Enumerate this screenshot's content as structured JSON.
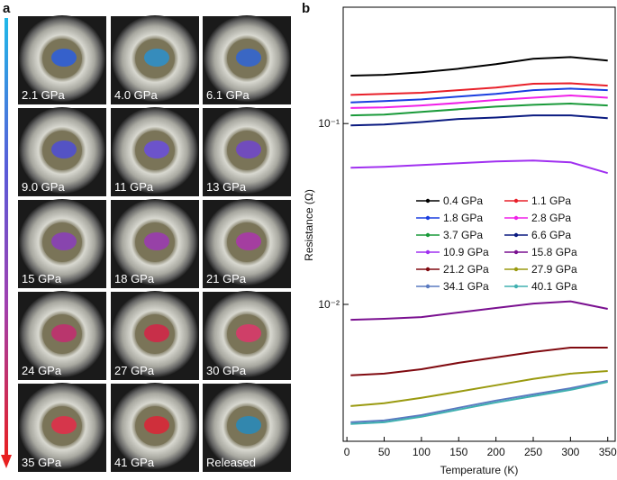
{
  "panel_labels": [
    "a",
    "b"
  ],
  "photos": [
    {
      "label": "2.1 GPa",
      "color": "#2f5fd8"
    },
    {
      "label": "4.0 GPa",
      "color": "#2f8fc8"
    },
    {
      "label": "6.1 GPa",
      "color": "#3366d0"
    },
    {
      "label": "9.0 GPa",
      "color": "#5050d0"
    },
    {
      "label": "11 GPa",
      "color": "#6a50d8"
    },
    {
      "label": "13 GPa",
      "color": "#7048c8"
    },
    {
      "label": "15 GPa",
      "color": "#8a40b8"
    },
    {
      "label": "18 GPa",
      "color": "#9a3cb0"
    },
    {
      "label": "21 GPa",
      "color": "#a838a8"
    },
    {
      "label": "24 GPa",
      "color": "#c03070"
    },
    {
      "label": "27 GPa",
      "color": "#d02848"
    },
    {
      "label": "30 GPa",
      "color": "#d83a6a"
    },
    {
      "label": "35 GPa",
      "color": "#e0304a"
    },
    {
      "label": "41 GPa",
      "color": "#d82838"
    },
    {
      "label": "Released",
      "color": "#2a8ab8"
    }
  ],
  "chart_data": {
    "type": "line",
    "xlabel": "Temperature (K)",
    "ylabel": "Resistance (Ω)",
    "log_y": true,
    "xlim": [
      -5,
      360
    ],
    "ylim": [
      0.00175,
      0.44
    ],
    "xticks": [
      0,
      50,
      100,
      150,
      200,
      250,
      300,
      350
    ],
    "yticks": [
      {
        "value": 0.1,
        "label": "10⁻¹"
      },
      {
        "value": 0.01,
        "label": "10⁻²"
      }
    ],
    "x": [
      5,
      50,
      100,
      150,
      200,
      250,
      300,
      350
    ],
    "series": [
      {
        "name": "0.4 GPa",
        "color": "#000000",
        "values": [
          0.184,
          0.186,
          0.192,
          0.201,
          0.213,
          0.228,
          0.233,
          0.223
        ]
      },
      {
        "name": "1.1 GPa",
        "color": "#e8202a",
        "values": [
          0.144,
          0.146,
          0.148,
          0.153,
          0.158,
          0.166,
          0.167,
          0.162
        ]
      },
      {
        "name": "1.8 GPa",
        "color": "#1a3ee0",
        "values": [
          0.131,
          0.133,
          0.136,
          0.141,
          0.146,
          0.153,
          0.156,
          0.153
        ]
      },
      {
        "name": "2.8 GPa",
        "color": "#f020e8",
        "values": [
          0.122,
          0.123,
          0.126,
          0.13,
          0.135,
          0.139,
          0.143,
          0.139
        ]
      },
      {
        "name": "3.7 GPa",
        "color": "#1a9a3a",
        "values": [
          0.111,
          0.112,
          0.116,
          0.12,
          0.124,
          0.127,
          0.129,
          0.126
        ]
      },
      {
        "name": "6.6 GPa",
        "color": "#0a1a80",
        "values": [
          0.0977,
          0.0989,
          0.102,
          0.106,
          0.108,
          0.111,
          0.111,
          0.107
        ]
      },
      {
        "name": "10.9 GPa",
        "color": "#a030f0",
        "values": [
          0.057,
          0.0577,
          0.059,
          0.0603,
          0.0618,
          0.0625,
          0.0611,
          0.0532
        ]
      },
      {
        "name": "15.8 GPa",
        "color": "#7a1090",
        "values": [
          0.00822,
          0.00832,
          0.00851,
          0.00902,
          0.00955,
          0.0101,
          0.0104,
          0.00944
        ]
      },
      {
        "name": "21.2 GPa",
        "color": "#800a10",
        "values": [
          0.00405,
          0.00414,
          0.00438,
          0.00475,
          0.00509,
          0.00545,
          0.00577,
          0.00577
        ]
      },
      {
        "name": "27.9 GPa",
        "color": "#9a9a10",
        "values": [
          0.00274,
          0.00284,
          0.00304,
          0.00329,
          0.00357,
          0.00387,
          0.00414,
          0.00428
        ]
      },
      {
        "name": "34.1 GPa",
        "color": "#5a7ac0",
        "values": [
          0.00223,
          0.00228,
          0.00244,
          0.00268,
          0.00294,
          0.00318,
          0.00344,
          0.00378
        ]
      },
      {
        "name": "40.1 GPa",
        "color": "#40b0b0",
        "values": [
          0.00218,
          0.00223,
          0.00239,
          0.00262,
          0.00287,
          0.00311,
          0.00337,
          0.00373
        ]
      }
    ]
  }
}
